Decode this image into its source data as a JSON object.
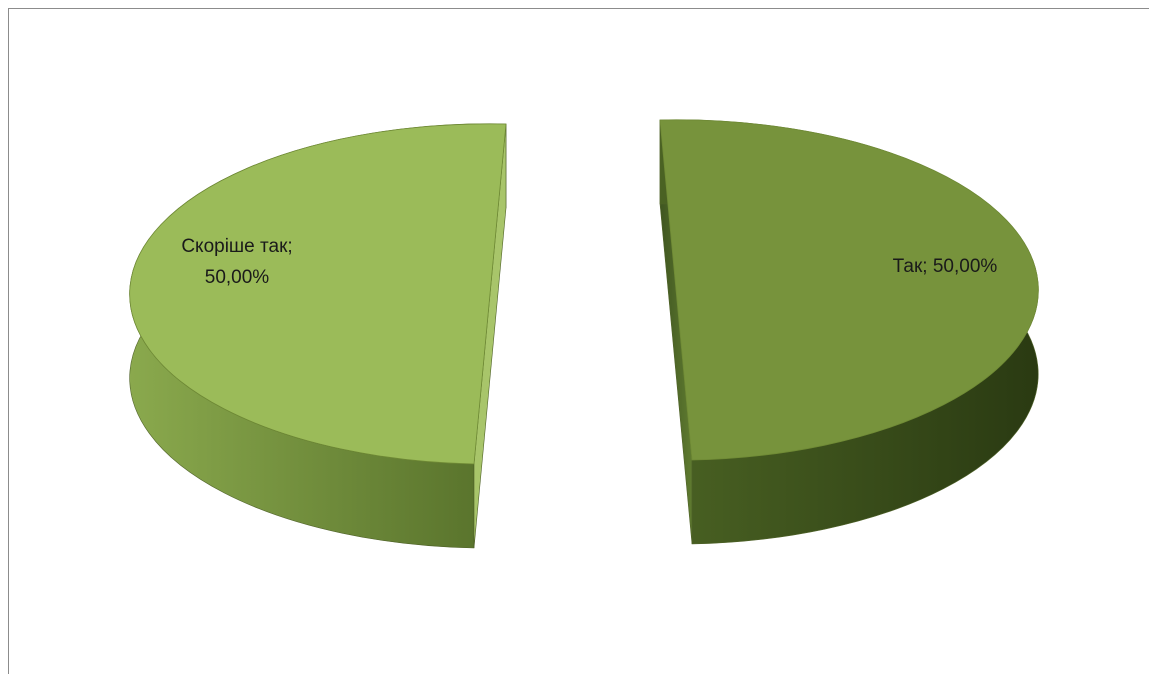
{
  "chart_data": {
    "type": "pie",
    "style": "3d-exploded",
    "slices": [
      {
        "label": "Скоріше так",
        "value": 50.0,
        "display_label": [
          "Скоріше так;",
          "50,00%"
        ],
        "color": "#9bbb59"
      },
      {
        "label": "Так",
        "value": 50.0,
        "display_label": [
          "Так; 50,00%"
        ],
        "color": "#77933c"
      }
    ],
    "legend": "none",
    "title": ""
  }
}
